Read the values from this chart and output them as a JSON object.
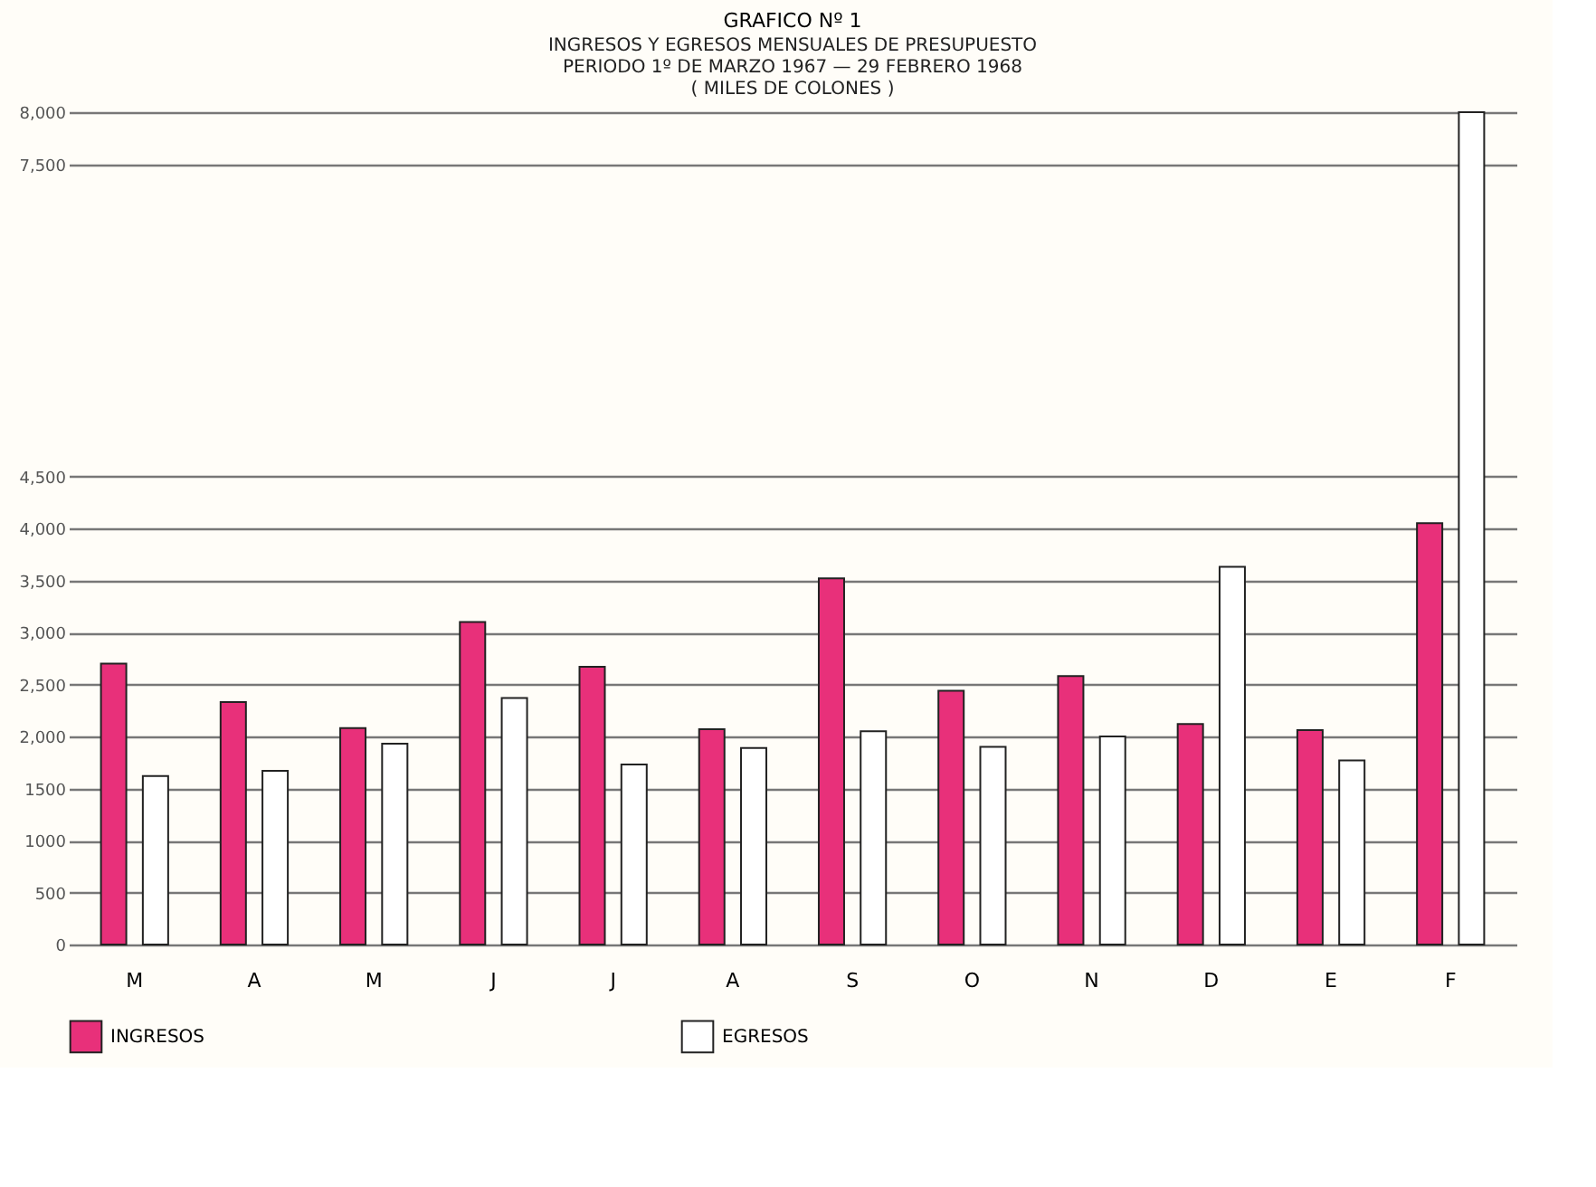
{
  "chart_data": {
    "type": "bar",
    "title": "GRAFICO Nº 1",
    "subtitle": "INGRESOS Y EGRESOS MENSUALES DE PRESUPUESTO\nPERIODO 1º DE MARZO 1967 — 29 FEBRERO 1968\n( MILES DE COLONES )",
    "categories": [
      "M",
      "A",
      "M",
      "J",
      "J",
      "A",
      "S",
      "O",
      "N",
      "D",
      "E",
      "F"
    ],
    "series": [
      {
        "name": "INGRESOS",
        "color": "#e8307a",
        "values": [
          2700,
          2330,
          2080,
          3100,
          2670,
          2070,
          3520,
          2440,
          2580,
          2120,
          2060,
          4050
        ]
      },
      {
        "name": "EGRESOS",
        "color": "#ffffff",
        "values": [
          1620,
          1670,
          1930,
          2370,
          1730,
          1890,
          2050,
          1900,
          2000,
          3630,
          1770,
          8000
        ]
      }
    ],
    "ylim": [
      0,
      8000
    ],
    "yticks": [
      0,
      500,
      1000,
      1500,
      {
        "value": 2000,
        "label": "2,000"
      },
      {
        "value": 2500,
        "label": "2,500"
      },
      {
        "value": 3000,
        "label": "3,000"
      },
      {
        "value": 3500,
        "label": "3,500"
      },
      {
        "value": 4000,
        "label": "4,000"
      },
      {
        "value": 4500,
        "label": "4,500"
      },
      {
        "value": 7500,
        "label": "7,500"
      },
      {
        "value": 8000,
        "label": "8,000"
      }
    ],
    "grid": "y",
    "legend": "bottom"
  }
}
